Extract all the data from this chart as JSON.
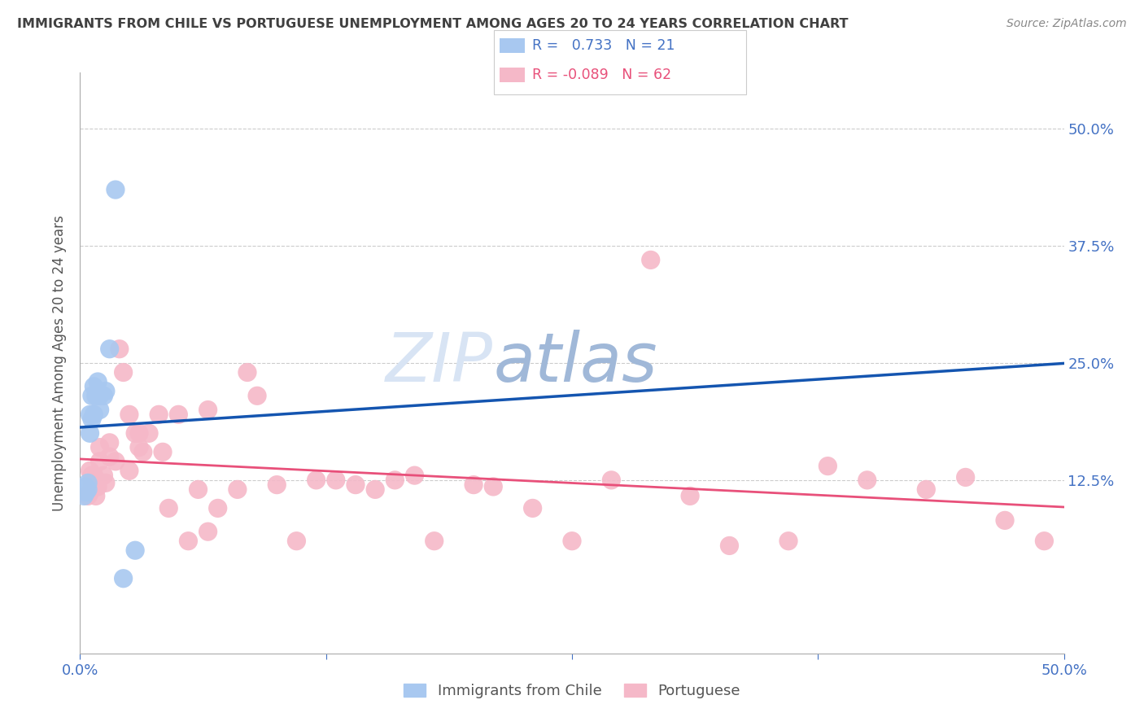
{
  "title": "IMMIGRANTS FROM CHILE VS PORTUGUESE UNEMPLOYMENT AMONG AGES 20 TO 24 YEARS CORRELATION CHART",
  "source": "Source: ZipAtlas.com",
  "ylabel": "Unemployment Among Ages 20 to 24 years",
  "ytick_labels": [
    "12.5%",
    "25.0%",
    "37.5%",
    "50.0%"
  ],
  "ytick_values": [
    0.125,
    0.25,
    0.375,
    0.5
  ],
  "xlim": [
    0.0,
    0.5
  ],
  "ylim": [
    -0.06,
    0.56
  ],
  "legend_blue_label": "Immigrants from Chile",
  "legend_pink_label": "Portuguese",
  "r_blue": 0.733,
  "n_blue": 21,
  "r_pink": -0.089,
  "n_pink": 62,
  "blue_color": "#A8C8F0",
  "pink_color": "#F5B8C8",
  "blue_line_color": "#1455B0",
  "pink_line_color": "#E8507A",
  "dashed_line_color": "#B0C8E8",
  "watermark_zip_color": "#D8E4F4",
  "watermark_atlas_color": "#A0B8D8",
  "title_color": "#404040",
  "axis_label_color": "#4472C4",
  "grid_color": "#CCCCCC",
  "blue_scatter_x": [
    0.002,
    0.003,
    0.003,
    0.004,
    0.004,
    0.005,
    0.005,
    0.006,
    0.006,
    0.007,
    0.007,
    0.008,
    0.009,
    0.01,
    0.01,
    0.012,
    0.013,
    0.015,
    0.018,
    0.022,
    0.028
  ],
  "blue_scatter_y": [
    0.108,
    0.112,
    0.118,
    0.115,
    0.122,
    0.175,
    0.195,
    0.19,
    0.215,
    0.195,
    0.225,
    0.215,
    0.23,
    0.2,
    0.215,
    0.215,
    0.22,
    0.265,
    0.435,
    0.02,
    0.05
  ],
  "pink_scatter_x": [
    0.004,
    0.005,
    0.005,
    0.006,
    0.006,
    0.007,
    0.007,
    0.008,
    0.008,
    0.009,
    0.01,
    0.01,
    0.012,
    0.013,
    0.015,
    0.015,
    0.018,
    0.02,
    0.022,
    0.025,
    0.025,
    0.028,
    0.03,
    0.03,
    0.032,
    0.035,
    0.04,
    0.042,
    0.045,
    0.05,
    0.055,
    0.06,
    0.065,
    0.065,
    0.07,
    0.08,
    0.085,
    0.09,
    0.1,
    0.11,
    0.12,
    0.13,
    0.14,
    0.15,
    0.16,
    0.17,
    0.18,
    0.2,
    0.21,
    0.23,
    0.25,
    0.27,
    0.29,
    0.31,
    0.33,
    0.36,
    0.38,
    0.4,
    0.43,
    0.45,
    0.47,
    0.49
  ],
  "pink_scatter_y": [
    0.108,
    0.112,
    0.135,
    0.122,
    0.13,
    0.118,
    0.13,
    0.108,
    0.125,
    0.118,
    0.145,
    0.16,
    0.13,
    0.122,
    0.15,
    0.165,
    0.145,
    0.265,
    0.24,
    0.135,
    0.195,
    0.175,
    0.16,
    0.175,
    0.155,
    0.175,
    0.195,
    0.155,
    0.095,
    0.195,
    0.06,
    0.115,
    0.07,
    0.2,
    0.095,
    0.115,
    0.24,
    0.215,
    0.12,
    0.06,
    0.125,
    0.125,
    0.12,
    0.115,
    0.125,
    0.13,
    0.06,
    0.12,
    0.118,
    0.095,
    0.06,
    0.125,
    0.36,
    0.108,
    0.055,
    0.06,
    0.14,
    0.125,
    0.115,
    0.128,
    0.082,
    0.06
  ],
  "blue_line_x0": 0.0,
  "blue_line_x1": 0.022,
  "pink_line_x0": 0.0,
  "pink_line_x1": 0.5,
  "pink_line_y0": 0.15,
  "pink_line_y1": 0.118
}
